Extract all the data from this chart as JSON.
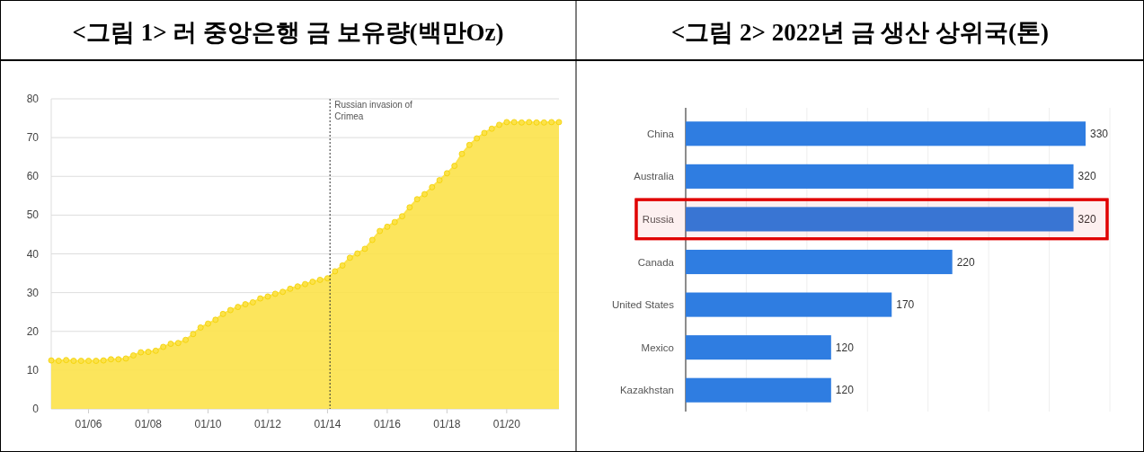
{
  "chart_data": [
    {
      "type": "area",
      "title": "<그림 1> 러 중앙은행 금 보유량(백만Oz)",
      "marker": "circle",
      "grid": "y",
      "x": [
        "2004-10",
        "2005-01",
        "2005-04",
        "2005-07",
        "2005-10",
        "2006-01",
        "2006-04",
        "2006-07",
        "2006-10",
        "2007-01",
        "2007-04",
        "2007-07",
        "2007-10",
        "2008-01",
        "2008-04",
        "2008-07",
        "2008-10",
        "2009-01",
        "2009-04",
        "2009-07",
        "2009-10",
        "2010-01",
        "2010-04",
        "2010-07",
        "2010-10",
        "2011-01",
        "2011-04",
        "2011-07",
        "2011-10",
        "2012-01",
        "2012-04",
        "2012-07",
        "2012-10",
        "2013-01",
        "2013-04",
        "2013-07",
        "2013-10",
        "2014-01",
        "2014-04",
        "2014-07",
        "2014-10",
        "2015-01",
        "2015-04",
        "2015-07",
        "2015-10",
        "2016-01",
        "2016-04",
        "2016-07",
        "2016-10",
        "2017-01",
        "2017-04",
        "2017-07",
        "2017-10",
        "2018-01",
        "2018-04",
        "2018-07",
        "2018-10",
        "2019-01",
        "2019-04",
        "2019-07",
        "2019-10",
        "2020-01",
        "2020-04",
        "2020-07",
        "2020-10",
        "2021-01",
        "2021-04",
        "2021-07",
        "2021-10"
      ],
      "series": [
        {
          "color": "#fce24a",
          "values": [
            12.5,
            12.4,
            12.6,
            12.4,
            12.4,
            12.4,
            12.4,
            12.5,
            12.8,
            12.8,
            13.0,
            13.8,
            14.6,
            14.7,
            15.0,
            16.0,
            16.8,
            17.0,
            17.8,
            19.3,
            21.0,
            22.0,
            23.0,
            24.5,
            25.5,
            26.3,
            27.0,
            27.5,
            28.5,
            29.0,
            29.7,
            30.2,
            31.0,
            31.6,
            32.2,
            32.8,
            33.3,
            33.7,
            35.5,
            37.0,
            39.0,
            40.1,
            41.3,
            43.6,
            45.9,
            47.0,
            48.2,
            49.7,
            52.0,
            54.1,
            55.4,
            57.2,
            59.0,
            60.8,
            62.7,
            65.8,
            68.1,
            69.8,
            71.2,
            72.3,
            73.3,
            74.0,
            74.0,
            73.9,
            74.0,
            73.9,
            73.9,
            74.0,
            74.0
          ]
        }
      ],
      "xlim": [
        "2004-10",
        "2021-10"
      ],
      "xticks": [
        {
          "value": "2006-01",
          "label": "01/06"
        },
        {
          "value": "2008-01",
          "label": "01/08"
        },
        {
          "value": "2010-01",
          "label": "01/10"
        },
        {
          "value": "2012-01",
          "label": "01/12"
        },
        {
          "value": "2014-01",
          "label": "01/14"
        },
        {
          "value": "2016-01",
          "label": "01/16"
        },
        {
          "value": "2018-01",
          "label": "01/18"
        },
        {
          "value": "2020-01",
          "label": "01/20"
        }
      ],
      "ylim": [
        0,
        80
      ],
      "yticks": [
        0,
        10,
        20,
        30,
        40,
        50,
        60,
        70,
        80
      ],
      "ref_lines": [
        {
          "axis": "x",
          "value": "2014-02",
          "label": "Russian invasion of Crimea",
          "color": "#333333",
          "line_style": "dotted"
        }
      ]
    },
    {
      "type": "bar",
      "orientation": "horizontal",
      "title": "<그림 2> 2022년 금 생산 상위국(톤)",
      "categories": [
        "China",
        "Australia",
        "Russia",
        "Canada",
        "United States",
        "Mexico",
        "Kazakhstan"
      ],
      "values": [
        330,
        320,
        320,
        220,
        170,
        120,
        120
      ],
      "color": "#2f7de1",
      "data_labels": true,
      "grid": "x",
      "tick_labels": "y",
      "xlim": [
        0,
        350
      ],
      "xticks": [
        {
          "value": 0,
          "label": null
        },
        {
          "value": 50,
          "label": null
        },
        {
          "value": 100,
          "label": null
        },
        {
          "value": 150,
          "label": null
        },
        {
          "value": 200,
          "label": null
        },
        {
          "value": 250,
          "label": null
        },
        {
          "value": 300,
          "label": null
        },
        {
          "value": 350,
          "label": null
        }
      ],
      "bands": [
        {
          "axis": "y",
          "from": "Russia",
          "to": "Russia",
          "color": "#e00000"
        }
      ]
    }
  ]
}
